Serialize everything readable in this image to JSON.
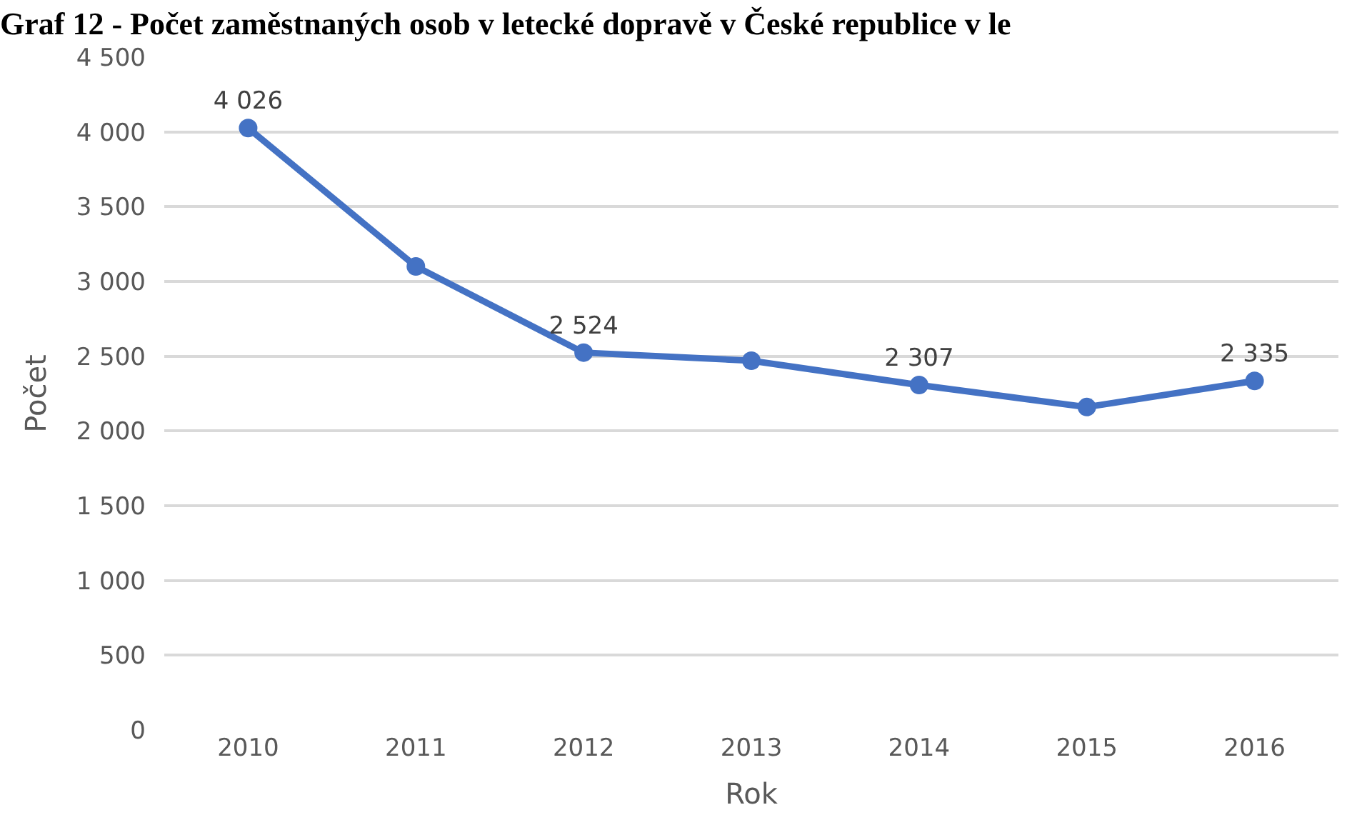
{
  "chart_data": {
    "type": "line",
    "title": "Graf 12 - Počet zaměstnaných osob v letecké dopravě v České republice v le",
    "xlabel": "Rok",
    "ylabel": "Počet",
    "categories": [
      "2010",
      "2011",
      "2012",
      "2013",
      "2014",
      "2015",
      "2016"
    ],
    "series": [
      {
        "color": "#4472c4",
        "values": [
          4026,
          3100,
          2524,
          2470,
          2307,
          2160,
          2335
        ],
        "value_labels": [
          "4 026",
          null,
          "2 524",
          null,
          "2 307",
          null,
          "2 335"
        ]
      }
    ],
    "ylim": [
      0,
      4500
    ],
    "yticks": [
      0,
      {
        "value": 500,
        "label": "500"
      },
      {
        "value": 1000,
        "label": "1 000"
      },
      {
        "value": 1500,
        "label": "1 500"
      },
      {
        "value": 2000,
        "label": "2 000"
      },
      {
        "value": 2500,
        "label": "2 500"
      },
      {
        "value": 3000,
        "label": "3 000"
      },
      {
        "value": 3500,
        "label": "3 500"
      },
      {
        "value": 4000,
        "label": "4 000"
      },
      {
        "value": 4500,
        "label": "4 500"
      }
    ],
    "grid": "y",
    "marker": "circle",
    "line_style": "solid",
    "legend": false
  }
}
